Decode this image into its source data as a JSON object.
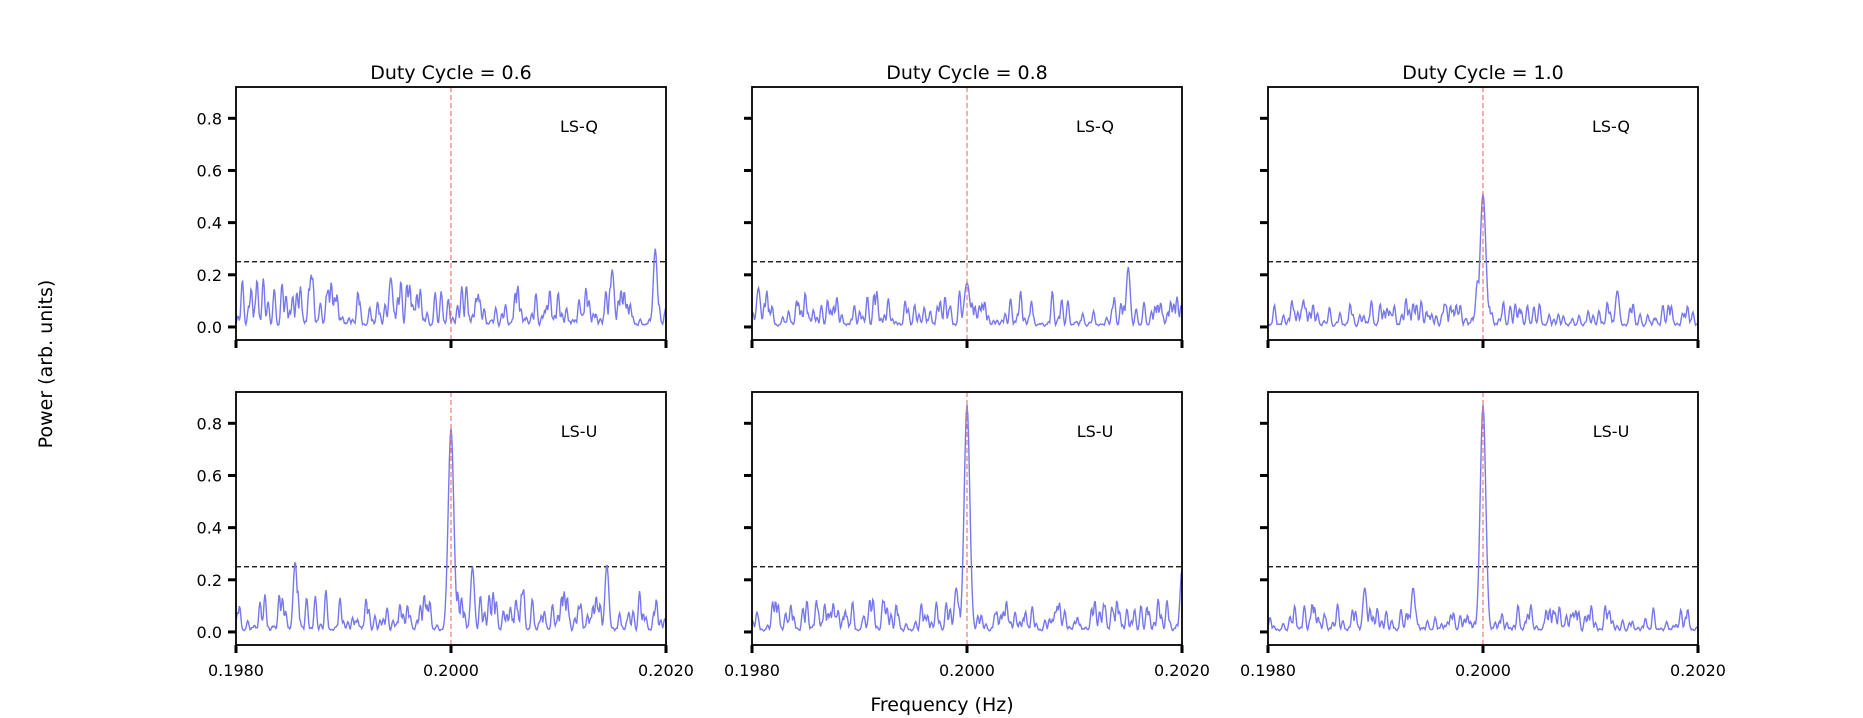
{
  "figure": {
    "xlabel": "Frequency (Hz)",
    "ylabel": "Power (arb. units)",
    "colors": {
      "signal": "#7777ee",
      "truth_line": "#ee7777",
      "threshold": "#000000",
      "axes": "#000000"
    }
  },
  "chart_data": {
    "type": "line",
    "layout": "2x3 grid, shared y-axis per row, shared x-axis per column",
    "columns": [
      "Duty Cycle = 0.6",
      "Duty Cycle = 0.8",
      "Duty Cycle = 1.0"
    ],
    "rows": [
      "LS-Q",
      "LS-U"
    ],
    "x_range": [
      0.198,
      0.202
    ],
    "x_ticks": [
      "0.1980",
      "0.2000",
      "0.2020"
    ],
    "x_tick_values": [
      0.198,
      0.2,
      0.202
    ],
    "y_range": [
      -0.05,
      0.92
    ],
    "y_ticks": [
      "0.0",
      "0.2",
      "0.4",
      "0.6",
      "0.8"
    ],
    "y_tick_values": [
      0.0,
      0.2,
      0.4,
      0.6,
      0.8
    ],
    "threshold": 0.25,
    "true_frequency": 0.2,
    "panels": [
      {
        "row": 0,
        "col": 0,
        "label": "LS-Q",
        "title": "Duty Cycle = 0.6",
        "peak": 0.3,
        "peak_x": 0.2019,
        "spike": null,
        "noise": 0.18,
        "seed": 11,
        "extra": [
          [
            0.2015,
            0.22
          ],
          [
            0.19944,
            0.19
          ],
          [
            0.1987,
            0.2
          ]
        ]
      },
      {
        "row": 0,
        "col": 1,
        "label": "LS-Q",
        "title": "Duty Cycle = 0.8",
        "peak": 0.23,
        "peak_x": 0.2015,
        "spike": [
          0.2,
          0.17
        ],
        "noise": 0.13,
        "seed": 23,
        "extra": [
          [
            0.19806,
            0.15
          ]
        ]
      },
      {
        "row": 0,
        "col": 2,
        "label": "LS-Q",
        "title": "Duty Cycle = 1.0",
        "peak": 0.51,
        "peak_x": 0.2,
        "spike": [
          0.2,
          0.51
        ],
        "noise": 0.1,
        "seed": 37,
        "extra": [
          [
            0.20125,
            0.14
          ],
          [
            0.19995,
            0.18
          ]
        ]
      },
      {
        "row": 1,
        "col": 0,
        "label": "LS-U",
        "title": "Duty Cycle = 0.6",
        "peak": 0.78,
        "peak_x": 0.2,
        "spike": [
          0.2,
          0.78
        ],
        "noise": 0.16,
        "seed": 51,
        "extra": [
          [
            0.19855,
            0.27
          ],
          [
            0.20145,
            0.26
          ],
          [
            0.2002,
            0.25
          ]
        ]
      },
      {
        "row": 1,
        "col": 1,
        "label": "LS-U",
        "title": "Duty Cycle = 0.8",
        "peak": 0.87,
        "peak_x": 0.2,
        "spike": [
          0.2,
          0.87
        ],
        "noise": 0.12,
        "seed": 67,
        "extra": [
          [
            0.202,
            0.24
          ],
          [
            0.1999,
            0.17
          ]
        ]
      },
      {
        "row": 1,
        "col": 2,
        "label": "LS-U",
        "title": "Duty Cycle = 1.0",
        "peak": 0.87,
        "peak_x": 0.2,
        "spike": [
          0.2,
          0.87
        ],
        "noise": 0.1,
        "seed": 79,
        "extra": [
          [
            0.1989,
            0.17
          ],
          [
            0.19935,
            0.17
          ]
        ]
      }
    ]
  }
}
